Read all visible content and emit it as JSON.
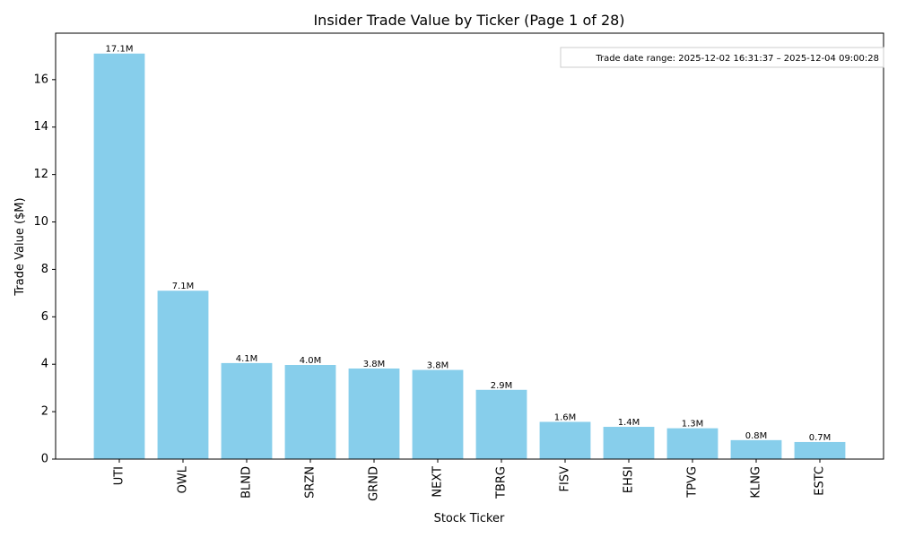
{
  "chart_data": {
    "type": "bar",
    "title": "Insider Trade Value by Ticker (Page 1 of 28)",
    "xlabel": "Stock Ticker",
    "ylabel": "Trade Value ($M)",
    "categories": [
      "UTI",
      "OWL",
      "BLND",
      "SRZN",
      "GRND",
      "NEXT",
      "TBRG",
      "FISV",
      "EHSI",
      "TPVG",
      "KLNG",
      "ESTC"
    ],
    "values": [
      17.1,
      7.1,
      4.05,
      3.97,
      3.82,
      3.76,
      2.92,
      1.57,
      1.36,
      1.3,
      0.8,
      0.72
    ],
    "value_labels": [
      "17.1M",
      "7.1M",
      "4.1M",
      "4.0M",
      "3.8M",
      "3.8M",
      "2.9M",
      "1.6M",
      "1.4M",
      "1.3M",
      "0.8M",
      "0.7M"
    ],
    "ylim": [
      0,
      17.96
    ],
    "yticks": [
      0,
      2,
      4,
      6,
      8,
      10,
      12,
      14,
      16
    ],
    "bar_color": "#87CEEB",
    "grid": false,
    "annotation": "Trade date range: 2025-12-02 16:31:37 – 2025-12-04 09:00:28"
  }
}
